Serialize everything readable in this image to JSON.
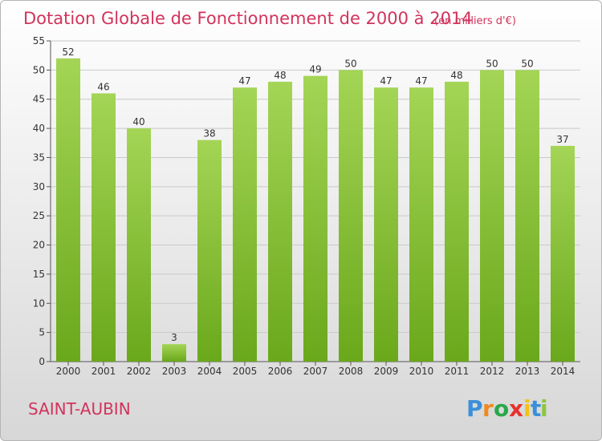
{
  "chart_data": {
    "type": "bar",
    "title": "Dotation Globale de Fonctionnement de 2000 à 2014",
    "subtitle": "(en milliers d'€)",
    "categories": [
      "2000",
      "2001",
      "2002",
      "2003",
      "2004",
      "2005",
      "2006",
      "2007",
      "2008",
      "2009",
      "2010",
      "2011",
      "2012",
      "2013",
      "2014"
    ],
    "values": [
      52,
      46,
      40,
      3,
      38,
      47,
      48,
      49,
      50,
      47,
      47,
      48,
      50,
      50,
      37
    ],
    "ylim": [
      0,
      55
    ],
    "yticks": [
      0,
      5,
      10,
      15,
      20,
      25,
      30,
      35,
      40,
      45,
      50,
      55
    ],
    "xlabel": "",
    "ylabel": "",
    "grid": true,
    "bar_color_top": "#a4d556",
    "bar_color_bottom": "#6aa81b"
  },
  "footer": {
    "commune": "SAINT-AUBIN",
    "logo_letters": [
      "P",
      "r",
      "o",
      "x",
      "i",
      "t",
      "i"
    ],
    "logo_colors": [
      "#3b8fd9",
      "#f08a1c",
      "#2aa84a",
      "#e8322c",
      "#f2c318",
      "#3b8fd9",
      "#8cc63f"
    ]
  },
  "colors": {
    "accent": "#d2335c",
    "grid": "#c9c9c9"
  }
}
